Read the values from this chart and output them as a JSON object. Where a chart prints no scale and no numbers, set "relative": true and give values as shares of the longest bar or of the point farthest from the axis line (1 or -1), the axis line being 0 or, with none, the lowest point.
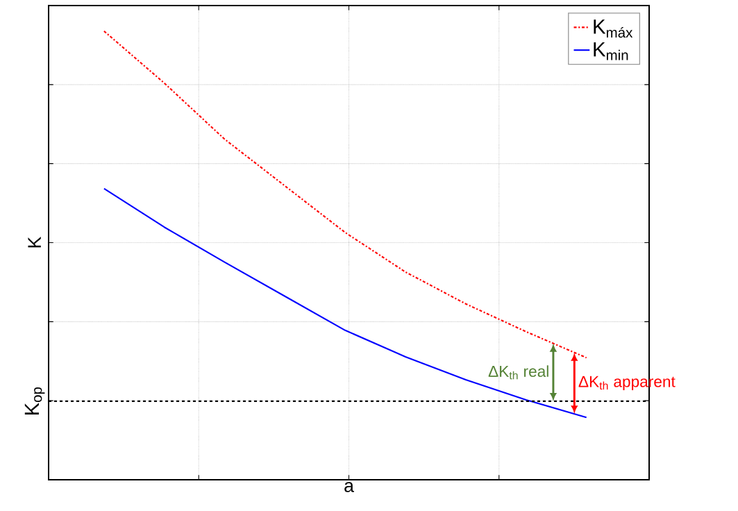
{
  "chart_data": {
    "type": "line",
    "xlabel": "a",
    "ylabel": "K",
    "relative": true,
    "categories": [
      null,
      null,
      null,
      null,
      null,
      null,
      null,
      null,
      null
    ],
    "grid": true,
    "legend": "top right",
    "marker": "none",
    "series": [
      {
        "name": "K$_{máx}$",
        "color": "#ff0000",
        "line_style": "dashdot",
        "values": [
          1.0,
          0.884,
          0.759,
          0.655,
          0.551,
          0.463,
          0.392,
          0.33,
          0.272
        ]
      },
      {
        "name": "K$_{min}$",
        "color": "#0000ff",
        "line_style": "solid",
        "values": [
          0.649,
          0.563,
          0.485,
          0.409,
          0.333,
          0.274,
          0.223,
          0.178,
          0.139
        ]
      }
    ],
    "ref_lines": [
      {
        "axis": "y",
        "value": 0.175,
        "label": "K$_{op}$",
        "color": "#000000",
        "line_style": "dashed"
      }
    ],
    "annotations": [
      "ΔK$_{th}$ real",
      "ΔK$_{th}$ apparent"
    ]
  }
}
